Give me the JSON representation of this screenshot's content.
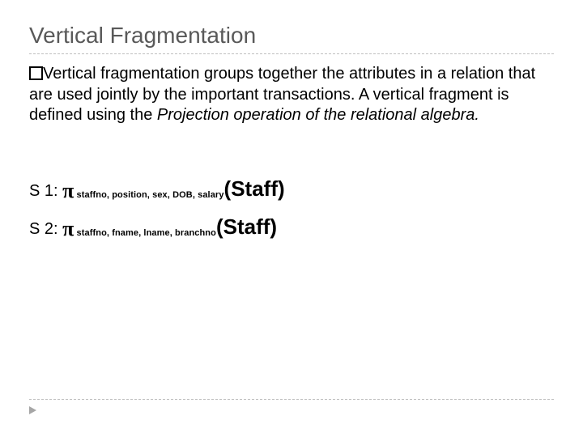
{
  "colors": {
    "background": "#ffffff",
    "title_color": "#595959",
    "text_color": "#000000",
    "rule_color": "#bfbfbf",
    "arrow_color": "#a6a6a6"
  },
  "typography": {
    "title_fontsize": 28,
    "body_fontsize": 20,
    "pi_fontsize": 26,
    "subscript_fontsize": 11,
    "staff_fontsize": 26,
    "font_family": "Arial"
  },
  "title": "Vertical Fragmentation",
  "body": {
    "lead": "Vertical fragmentation groups together the attributes in a relation that are used jointly by the important transactions. A vertical fragment is defined using the ",
    "italic_part": "Projection operation of the relational algebra."
  },
  "fragments": [
    {
      "label": "S 1: ",
      "pi": "π",
      "subscript": " staffno, position, sex, DOB, salary",
      "relation": "(Staff)"
    },
    {
      "label": "S 2: ",
      "pi": "π",
      "subscript": " staffno, fname, lname, branchno",
      "relation": "(Staff)"
    }
  ]
}
